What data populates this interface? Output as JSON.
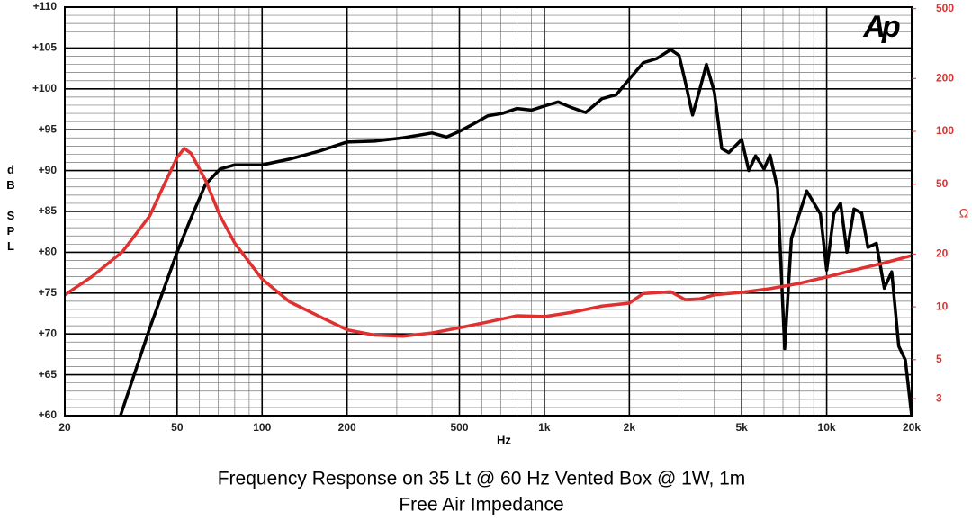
{
  "chart_data": {
    "type": "line",
    "title": "Frequency Response on 35 Lt @ 60 Hz Vented Box @ 1W, 1m",
    "subtitle": "Free Air Impedance",
    "logo": "Ap",
    "x_label": "Hz",
    "y_label": "dB SPL",
    "y2_label": "Ω",
    "x_log": true,
    "y2_log": true,
    "grid": true,
    "xlim": [
      20,
      20000
    ],
    "xticks": [
      20,
      50,
      100,
      200,
      500,
      {
        "value": 1000,
        "label": "1k"
      },
      {
        "value": 2000,
        "label": "2k"
      },
      {
        "value": 5000,
        "label": "5k"
      },
      {
        "value": 10000,
        "label": "10k"
      },
      {
        "value": 20000,
        "label": "20k"
      }
    ],
    "ylim": [
      60,
      110
    ],
    "yticks": [
      {
        "value": 60,
        "label": "+60"
      },
      {
        "value": 65,
        "label": "+65"
      },
      {
        "value": 70,
        "label": "+70"
      },
      {
        "value": 75,
        "label": "+75"
      },
      {
        "value": 80,
        "label": "+80"
      },
      {
        "value": 85,
        "label": "+85"
      },
      {
        "value": 90,
        "label": "+90"
      },
      {
        "value": 95,
        "label": "+95"
      },
      {
        "value": 100,
        "label": "+100"
      },
      {
        "value": 105,
        "label": "+105"
      },
      {
        "value": 110,
        "label": "+110"
      }
    ],
    "y2lim": [
      2.4,
      510
    ],
    "y2ticks": [
      3,
      5,
      10,
      20,
      50,
      100,
      200,
      500
    ],
    "y2_color": "#e03030",
    "series": [
      {
        "color": "#000000",
        "axis": "y",
        "x": [
          31.5,
          40,
          50,
          56,
          63,
          71,
          80,
          100,
          125,
          160,
          200,
          250,
          315,
          400,
          450,
          500,
          560,
          630,
          710,
          800,
          900,
          1000,
          1120,
          1250,
          1400,
          1600,
          1800,
          2000,
          2240,
          2500,
          2800,
          3000,
          3150,
          3350,
          3550,
          3750,
          4000,
          4250,
          4500,
          5000,
          5300,
          5600,
          6000,
          6300,
          6700,
          7100,
          7500,
          8500,
          9500,
          10000,
          10600,
          11200,
          11800,
          12500,
          13300,
          14000,
          15000,
          16000,
          17000,
          18000,
          19000,
          20000
        ],
        "values": [
          60,
          70.7,
          80,
          84.2,
          88.3,
          90.2,
          90.7,
          90.7,
          91.4,
          92.4,
          93.5,
          93.6,
          94,
          94.6,
          94.1,
          94.8,
          95.7,
          96.7,
          97,
          97.6,
          97.4,
          97.9,
          98.4,
          97.7,
          97.1,
          98.8,
          99.3,
          101.2,
          103.2,
          103.7,
          104.8,
          104.1,
          101,
          96.8,
          99.9,
          103,
          99.6,
          92.7,
          92.2,
          93.8,
          90,
          91.8,
          90.2,
          91.9,
          87.8,
          68.2,
          81.7,
          87.5,
          84.7,
          77.8,
          84.7,
          86,
          80,
          85.3,
          84.8,
          80.6,
          81.1,
          75.6,
          77.6,
          68.5,
          66.8,
          60
        ]
      },
      {
        "color": "#e03030",
        "axis": "y2",
        "x": [
          20,
          25,
          32,
          40,
          45,
          50,
          53,
          56,
          63,
          71,
          80,
          100,
          125,
          160,
          200,
          250,
          315,
          400,
          500,
          630,
          800,
          1000,
          1250,
          1600,
          2000,
          2240,
          2800,
          3150,
          3550,
          4000,
          5000,
          6300,
          8000,
          10000,
          12500,
          16000,
          20000
        ],
        "values": [
          11.7,
          14.9,
          20.6,
          33,
          49.8,
          71,
          80,
          75,
          52.8,
          33,
          23.1,
          14.4,
          10.7,
          8.8,
          7.4,
          6.9,
          6.8,
          7.1,
          7.6,
          8.2,
          8.9,
          8.8,
          9.3,
          10.1,
          10.5,
          11.9,
          12.2,
          11,
          11.1,
          11.7,
          12.1,
          12.7,
          13.6,
          14.8,
          16.2,
          17.8,
          19.6
        ]
      }
    ]
  }
}
